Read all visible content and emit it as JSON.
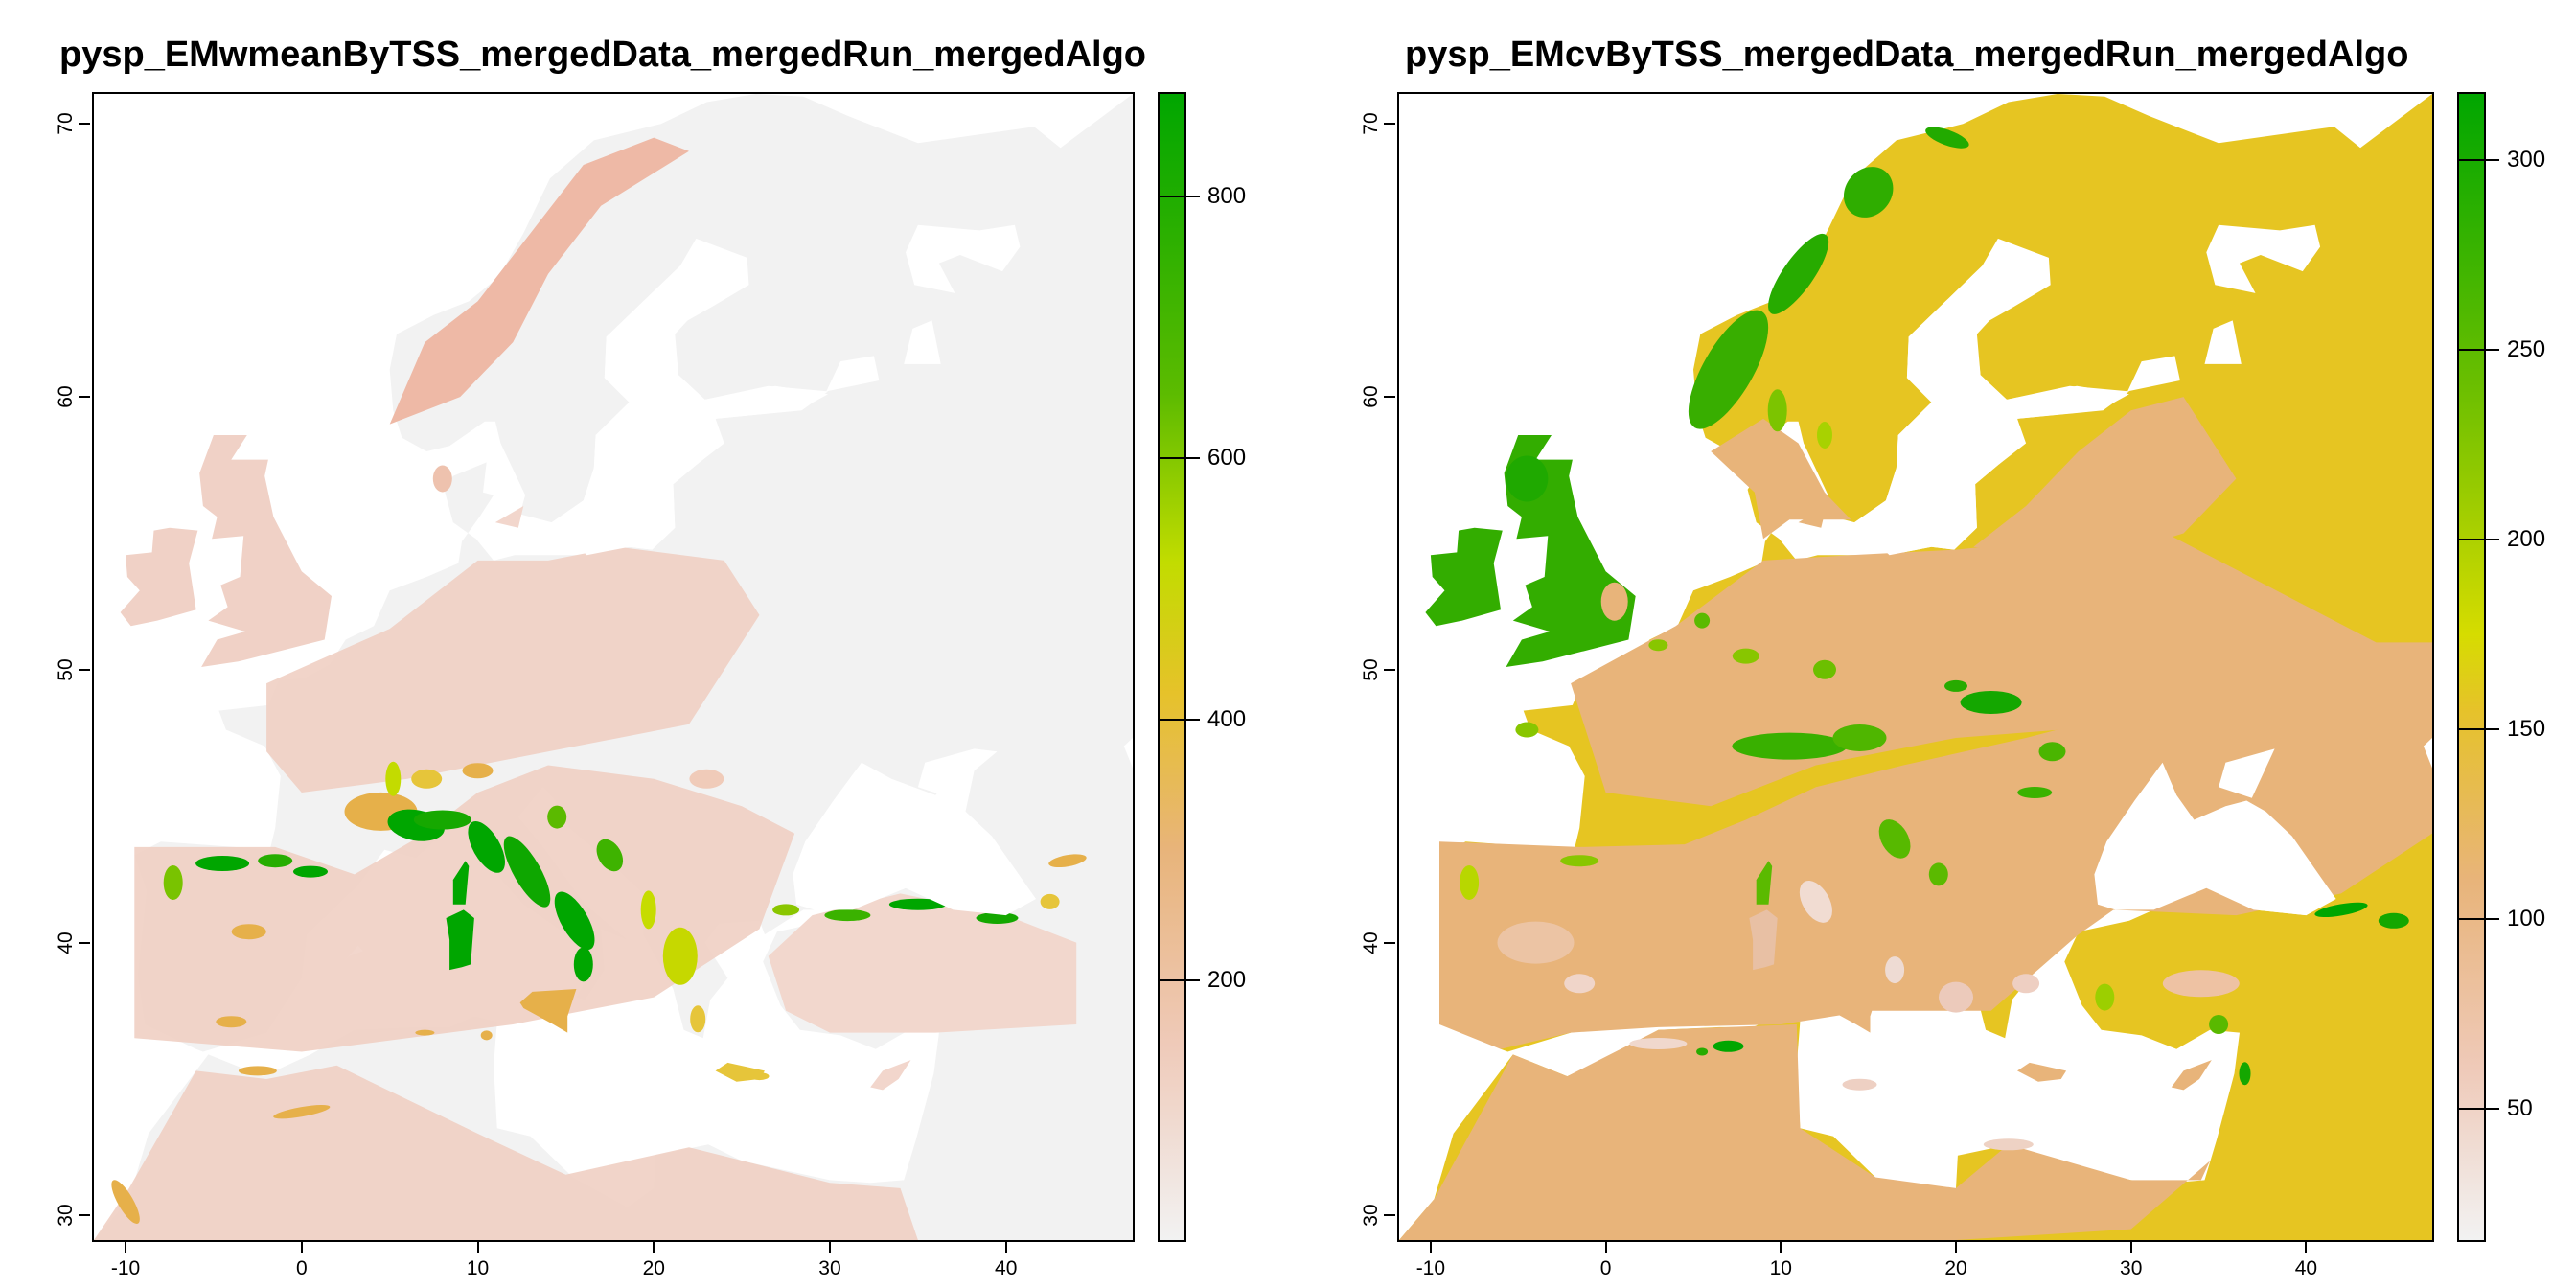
{
  "maps": [
    {
      "id": "wmean",
      "title": "pysp_EMwmeanByTSS_mergedData_mergedRun_mergedAlgo",
      "x_ticks": [
        "-10",
        "0",
        "10",
        "20",
        "30",
        "40"
      ],
      "x_tick_values": [
        -10,
        0,
        10,
        20,
        30,
        40
      ],
      "y_ticks": [
        "30",
        "40",
        "50",
        "60",
        "70"
      ],
      "y_tick_values": [
        30,
        40,
        50,
        60,
        70
      ],
      "xlim": [
        -11.8,
        47.2
      ],
      "ylim": [
        29.1,
        71.1
      ],
      "legend": {
        "ticks": [
          "200",
          "400",
          "600",
          "800"
        ],
        "tick_values": [
          200,
          400,
          600,
          800
        ],
        "range": [
          0,
          880
        ]
      }
    },
    {
      "id": "cv",
      "title": "pysp_EMcvByTSS_mergedData_mergedRun_mergedAlgo",
      "x_ticks": [
        "-10",
        "0",
        "10",
        "20",
        "30",
        "40"
      ],
      "x_tick_values": [
        -10,
        0,
        10,
        20,
        30,
        40
      ],
      "y_ticks": [
        "30",
        "40",
        "50",
        "60",
        "70"
      ],
      "y_tick_values": [
        30,
        40,
        50,
        60,
        70
      ],
      "xlim": [
        -11.8,
        47.2
      ],
      "ylim": [
        29.1,
        71.1
      ],
      "legend": {
        "ticks": [
          "50",
          "100",
          "150",
          "200",
          "250",
          "300"
        ],
        "tick_values": [
          50,
          100,
          150,
          200,
          250,
          300
        ],
        "range": [
          15,
          318
        ]
      }
    }
  ],
  "colors": {
    "terrain_low": "#f2f2f2",
    "terrain_pink": "#eeb99f",
    "terrain_tan": "#e6b04a",
    "terrain_yellow": "#e6e600",
    "terrain_green": "#00a600",
    "water": "#ffffff"
  }
}
